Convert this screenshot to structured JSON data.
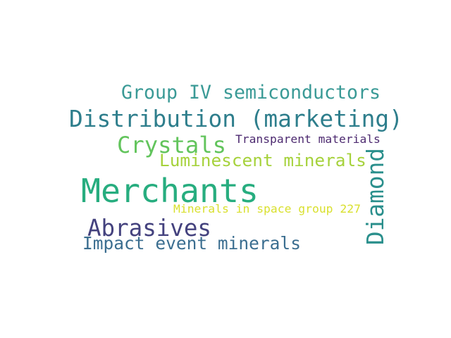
{
  "words": [
    {
      "text": "Group IV semiconductors",
      "color": "#3a9a96"
    },
    {
      "text": "Distribution (marketing)",
      "color": "#2e7e8c"
    },
    {
      "text": "Crystals",
      "color": "#62c45c"
    },
    {
      "text": "Transparent materials",
      "color": "#4d2a70"
    },
    {
      "text": "Luminescent minerals",
      "color": "#a6d23c"
    },
    {
      "text": "Merchants",
      "color": "#27ad7f"
    },
    {
      "text": "Diamond",
      "color": "#2a8f8c"
    },
    {
      "text": "Minerals in space group 227",
      "color": "#d9e02e"
    },
    {
      "text": "Abrasives",
      "color": "#44427e"
    },
    {
      "text": "Impact event minerals",
      "color": "#3b6e90"
    }
  ]
}
